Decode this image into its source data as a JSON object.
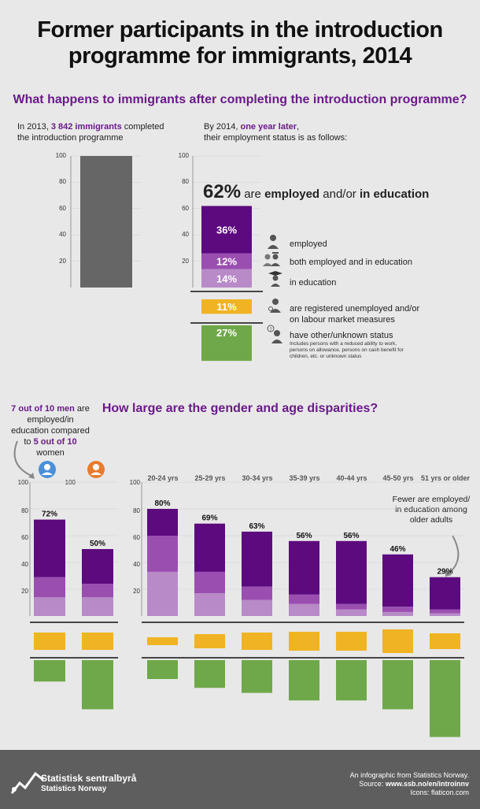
{
  "title_line1": "Former participants in the introduction",
  "title_line2": "programme for immigrants, 2014",
  "subtitle1": "What happens to immigrants after completing the introduction programme?",
  "left_intro": {
    "pre": "In 2013, ",
    "highlight": "3 842 immigrants",
    "post": " completed",
    "line2": "the introduction programme"
  },
  "right_intro": {
    "pre": "By 2014, ",
    "highlight": "one year later",
    "post": ",",
    "line2": "their employment status is as follows:"
  },
  "headline": {
    "pct": "62%",
    "mid": " are ",
    "bold1": "employed",
    "mid2": " and/or ",
    "bold2": "in education"
  },
  "ticks": [
    "100",
    "80",
    "60",
    "40",
    "20"
  ],
  "legend": {
    "employed": "employed",
    "both": "both employed and in education",
    "education": "in education",
    "unemployed": "are registered unemployed and/or",
    "unemployed2": "on labour market measures",
    "other": "have other/unknown status",
    "note1": "Includes persons with a reduced ability to work,",
    "note2": "persons on allowance, persons on cash benefit for",
    "note3": "children, etc. or unknown status"
  },
  "subtitle2": "How large are the gender and age disparities?",
  "gender_note": {
    "a": "7 out of 10 men",
    "b": " are",
    "c": "employed/in",
    "d": "education compared",
    "e": "to ",
    "f": "5 out of 10",
    "g": "women"
  },
  "gender_tick_right": "100",
  "older_note": {
    "l1": "Fewer are employed/",
    "l2": "in education among",
    "l3": "older adults"
  },
  "footer": {
    "org1": "Statistisk sentralbyrå",
    "org2": "Statistics Norway",
    "r1": "An infographic from Statistics Norway.",
    "r2pre": "Source: ",
    "r2": "www.ssb.no/en/introinnv",
    "r3": "Icons: flaticon.com"
  },
  "colors": {
    "employed": "#5c0a7e",
    "both": "#9a4fb0",
    "education": "#b88ac8",
    "unemployed": "#f0b323",
    "other": "#6fa84a",
    "total2013": "#666666"
  },
  "chart_data": [
    {
      "type": "bar",
      "title": "In 2013, 3 842 immigrants completed the introduction programme",
      "categories": [
        "2013"
      ],
      "values": [
        100
      ],
      "ylim": [
        0,
        100
      ]
    },
    {
      "type": "bar",
      "title": "By 2014, one year later, their employment status is as follows:",
      "categories": [
        "2014"
      ],
      "series": [
        {
          "name": "employed",
          "values": [
            36
          ]
        },
        {
          "name": "both employed and in education",
          "values": [
            12
          ]
        },
        {
          "name": "in education",
          "values": [
            14
          ]
        },
        {
          "name": "are registered unemployed and/or on labour market measures",
          "values": [
            11
          ]
        },
        {
          "name": "have other/unknown status",
          "values": [
            27
          ]
        }
      ],
      "labels": [
        "36%",
        "12%",
        "14%",
        "11%",
        "27%"
      ],
      "total_label": "62%",
      "ylim": [
        0,
        100
      ]
    },
    {
      "type": "bar",
      "categories": [
        "men",
        "women"
      ],
      "totals": [
        "72%",
        "50%"
      ],
      "series": [
        {
          "name": "employed",
          "values": [
            43,
            26
          ]
        },
        {
          "name": "both employed and in education",
          "values": [
            15,
            10
          ]
        },
        {
          "name": "in education",
          "values": [
            14,
            14
          ]
        },
        {
          "name": "are registered unemployed and/or on labour market measures",
          "values": [
            11,
            11
          ]
        },
        {
          "name": "have other/unknown status",
          "values": [
            17,
            39
          ]
        }
      ],
      "ylim": [
        0,
        100
      ]
    },
    {
      "type": "bar",
      "categories": [
        "20-24 yrs",
        "25-29 yrs",
        "30-34 yrs",
        "35-39 yrs",
        "40-44 yrs",
        "45-50 yrs",
        "51 yrs or older"
      ],
      "totals": [
        "80%",
        "69%",
        "63%",
        "56%",
        "56%",
        "46%",
        "29%"
      ],
      "series": [
        {
          "name": "employed",
          "values": [
            20,
            36,
            41,
            40,
            47,
            39,
            24
          ]
        },
        {
          "name": "both employed and in education",
          "values": [
            27,
            16,
            10,
            7,
            4,
            4,
            3
          ]
        },
        {
          "name": "in education",
          "values": [
            33,
            17,
            12,
            9,
            5,
            3,
            2
          ]
        },
        {
          "name": "are registered unemployed and/or on labour market measures",
          "values": [
            5,
            9,
            11,
            12,
            12,
            15,
            10
          ]
        },
        {
          "name": "have other/unknown status",
          "values": [
            15,
            22,
            26,
            32,
            32,
            39,
            61
          ]
        }
      ],
      "ylim": [
        0,
        100
      ]
    }
  ]
}
